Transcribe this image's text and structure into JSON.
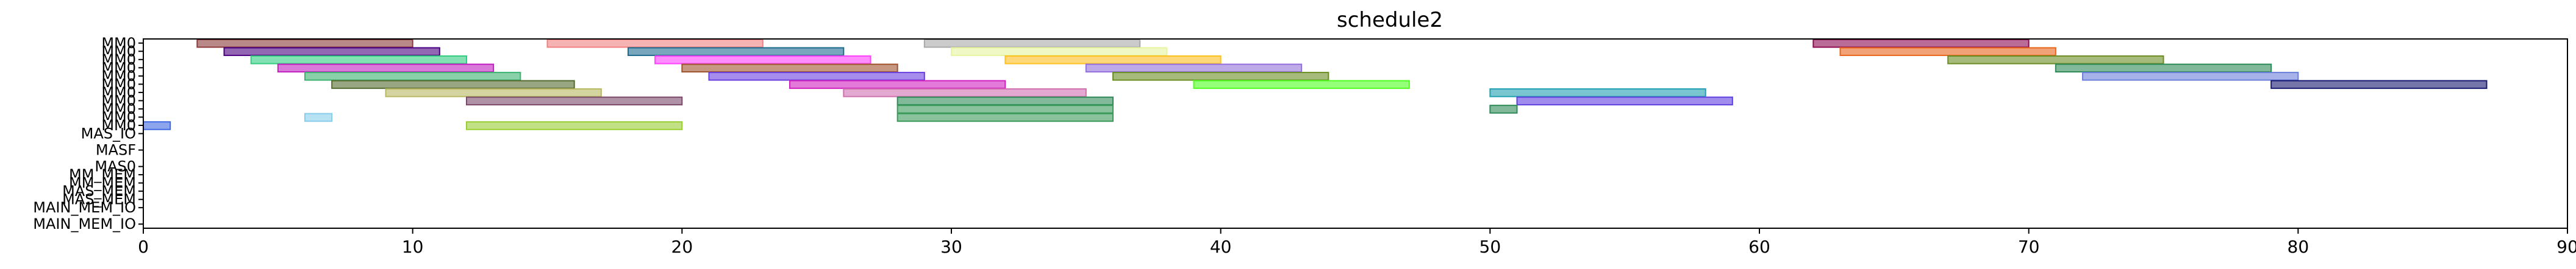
{
  "chart_data": {
    "type": "gantt",
    "title": "schedule2",
    "xlim": [
      0,
      90
    ],
    "x_ticks": [
      0,
      10,
      20,
      30,
      40,
      50,
      60,
      70,
      80,
      90
    ],
    "rows": [
      "MM0",
      "MM0",
      "MM0",
      "MM0",
      "MM0",
      "MM0",
      "MM0",
      "MM0",
      "MM0",
      "MM0",
      "MM0",
      "MAS_IO",
      "MAS_IO",
      "MASF",
      "MAS0",
      "MAS0",
      "MM_MEM",
      "MM_MEM",
      "MAS_MEM",
      "MAS_MEM",
      "MAIN_MEM_IO",
      "MAIN_MEM_IO",
      "MAIN_MEM_IO"
    ],
    "tick_label_rows": [
      0,
      1,
      2,
      3,
      4,
      5,
      6,
      7,
      8,
      9,
      10,
      11,
      13,
      15,
      16,
      17,
      18,
      19,
      20,
      22
    ],
    "tick_labels": [
      "MM0",
      "MM0",
      "MM0",
      "MM0",
      "MM0",
      "MM0",
      "MM0",
      "MM0",
      "MM0",
      "MM0",
      "MM0",
      "MAS_IO",
      "MASF",
      "MAS0",
      "MM_MEM",
      "MM_MEM",
      "MAS_MEM",
      "MAS_MEM",
      "MAIN_MEM_IO",
      "MAIN_MEM_IO"
    ],
    "tasks": [
      {
        "row": 0,
        "start": 2,
        "end": 10,
        "color": "#8b3a3a"
      },
      {
        "row": 0,
        "start": 15,
        "end": 23,
        "color": "#f08080"
      },
      {
        "row": 0,
        "start": 29,
        "end": 37,
        "color": "#a9a9a9"
      },
      {
        "row": 0,
        "start": 62,
        "end": 70,
        "color": "#8b0a50"
      },
      {
        "row": 1,
        "start": 3,
        "end": 11,
        "color": "#4b0082"
      },
      {
        "row": 1,
        "start": 18,
        "end": 26,
        "color": "#1e6b8f"
      },
      {
        "row": 1,
        "start": 30,
        "end": 38,
        "color": "#e6f5a0"
      },
      {
        "row": 1,
        "start": 63,
        "end": 71,
        "color": "#e8651c"
      },
      {
        "row": 2,
        "start": 4,
        "end": 12,
        "color": "#32cd80"
      },
      {
        "row": 2,
        "start": 19,
        "end": 27,
        "color": "#ff40ff"
      },
      {
        "row": 2,
        "start": 32,
        "end": 40,
        "color": "#ffc020"
      },
      {
        "row": 2,
        "start": 67,
        "end": 75,
        "color": "#6b8e23"
      },
      {
        "row": 3,
        "start": 5,
        "end": 13,
        "color": "#c020c0"
      },
      {
        "row": 3,
        "start": 20,
        "end": 28,
        "color": "#a0522d"
      },
      {
        "row": 3,
        "start": 35,
        "end": 43,
        "color": "#9370db"
      },
      {
        "row": 3,
        "start": 71,
        "end": 79,
        "color": "#2e8b57"
      },
      {
        "row": 4,
        "start": 6,
        "end": 14,
        "color": "#3cb371"
      },
      {
        "row": 4,
        "start": 21,
        "end": 29,
        "color": "#6a3fe0"
      },
      {
        "row": 4,
        "start": 36,
        "end": 44,
        "color": "#6b8e23"
      },
      {
        "row": 4,
        "start": 72,
        "end": 80,
        "color": "#6a7fdb"
      },
      {
        "row": 5,
        "start": 7,
        "end": 16,
        "color": "#556b2f"
      },
      {
        "row": 5,
        "start": 24,
        "end": 32,
        "color": "#d020c0"
      },
      {
        "row": 5,
        "start": 39,
        "end": 47,
        "color": "#50ff20"
      },
      {
        "row": 5,
        "start": 79,
        "end": 87,
        "color": "#191970"
      },
      {
        "row": 6,
        "start": 9,
        "end": 17,
        "color": "#b8b860"
      },
      {
        "row": 6,
        "start": 26,
        "end": 35,
        "color": "#d070b0"
      },
      {
        "row": 6,
        "start": 50,
        "end": 58,
        "color": "#20a0b0"
      },
      {
        "row": 7,
        "start": 12,
        "end": 20,
        "color": "#7a4a6a"
      },
      {
        "row": 7,
        "start": 28,
        "end": 36,
        "color": "#2e8b57"
      },
      {
        "row": 7,
        "start": 51,
        "end": 59,
        "color": "#6040e0"
      },
      {
        "row": 8,
        "start": 28,
        "end": 36,
        "color": "#3a9a5a"
      },
      {
        "row": 8,
        "start": 50,
        "end": 51,
        "color": "#2e8b57"
      },
      {
        "row": 9,
        "start": 6,
        "end": 7,
        "color": "#87ceeb"
      },
      {
        "row": 9,
        "start": 28,
        "end": 36,
        "color": "#3a9a5a"
      },
      {
        "row": 10,
        "start": 0,
        "end": 1,
        "color": "#4169e1"
      },
      {
        "row": 10,
        "start": 12,
        "end": 20,
        "color": "#9acd32"
      }
    ]
  }
}
